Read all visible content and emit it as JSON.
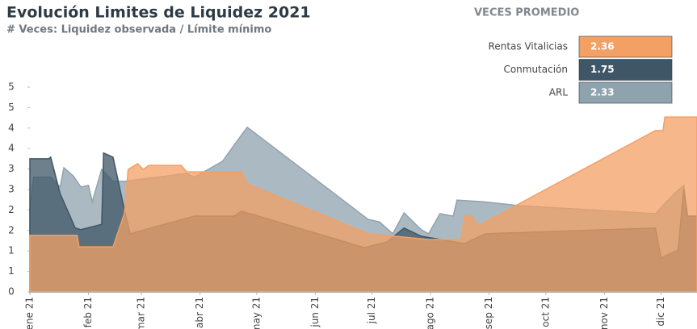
{
  "chart_data": {
    "type": "area",
    "title": "Evolución Limites de Liquidez 2021",
    "subtitle": "# Veces: Liquidez observada / Límite mínimo",
    "legend_title": "VECES PROMEDIO",
    "xlim": [
      0,
      353
    ],
    "xticks": [
      {
        "value": 0,
        "label": "ene 21"
      },
      {
        "value": 31,
        "label": "feb 21"
      },
      {
        "value": 59,
        "label": "mar 21"
      },
      {
        "value": 90,
        "label": "abr 21"
      },
      {
        "value": 120,
        "label": "may 21"
      },
      {
        "value": 151,
        "label": "jun 21"
      },
      {
        "value": 181,
        "label": "jul 21"
      },
      {
        "value": 212,
        "label": "ago 21"
      },
      {
        "value": 243,
        "label": "sep 21"
      },
      {
        "value": 273,
        "label": "oct 21"
      },
      {
        "value": 304,
        "label": "nov 21"
      },
      {
        "value": 334,
        "label": "dic 21"
      }
    ],
    "ylim": [
      0,
      5
    ],
    "yticks": [
      0,
      {
        "value": 0.5,
        "label": "1"
      },
      1,
      {
        "value": 1.5,
        "label": "2"
      },
      2,
      {
        "value": 2.5,
        "label": "3"
      },
      3,
      {
        "value": 3.5,
        "label": "4"
      },
      4,
      {
        "value": 4.5,
        "label": "5"
      },
      5
    ],
    "series": [
      {
        "name": "ARL",
        "color": "#8fa3ae",
        "average": 2.33,
        "x": [
          0,
          2,
          11,
          16,
          18,
          23,
          27,
          31,
          33,
          38,
          44,
          50,
          83,
          87,
          102,
          108,
          115,
          179,
          185,
          192,
          198,
          207,
          211,
          217,
          224,
          226,
          240,
          258,
          331,
          341,
          346,
          348,
          353
        ],
        "values": [
          2.05,
          2.8,
          2.8,
          2.56,
          3.03,
          2.83,
          2.56,
          2.6,
          2.2,
          2.99,
          2.7,
          2.7,
          2.89,
          2.8,
          3.19,
          3.58,
          4.02,
          1.77,
          1.71,
          1.42,
          1.93,
          1.52,
          1.42,
          1.91,
          1.85,
          2.24,
          2.2,
          2.11,
          1.91,
          2.4,
          2.6,
          1.85,
          1.85
        ]
      },
      {
        "name": "Conmutación",
        "color": "#3e5666",
        "average": 1.75,
        "x": [
          0,
          10,
          11,
          16,
          24,
          27,
          38,
          39,
          44,
          50,
          53,
          87,
          108,
          112,
          121,
          177,
          189,
          198,
          207,
          230,
          241,
          331,
          334,
          343,
          346,
          348,
          353
        ],
        "values": [
          3.25,
          3.25,
          3.29,
          2.4,
          1.56,
          1.52,
          1.65,
          3.39,
          3.29,
          2.01,
          1.42,
          1.85,
          1.85,
          1.97,
          1.85,
          1.08,
          1.22,
          1.56,
          1.36,
          1.18,
          1.42,
          1.56,
          0.83,
          1.02,
          2.52,
          1.85,
          1.85
        ]
      },
      {
        "name": "Rentas Vitalicias",
        "color": "#f3a064",
        "average": 2.36,
        "x": [
          0,
          25,
          26,
          44,
          50,
          52,
          57,
          60,
          63,
          80,
          83,
          112,
          115,
          179,
          211,
          228,
          230,
          234,
          237,
          331,
          335,
          336,
          353
        ],
        "values": [
          1.38,
          1.38,
          1.1,
          1.1,
          1.91,
          2.99,
          3.13,
          2.99,
          3.09,
          3.09,
          2.93,
          2.93,
          2.64,
          1.42,
          1.28,
          1.28,
          1.85,
          1.85,
          1.61,
          3.94,
          3.94,
          4.27,
          4.27
        ]
      }
    ],
    "legend_order": [
      2,
      1,
      0
    ]
  }
}
